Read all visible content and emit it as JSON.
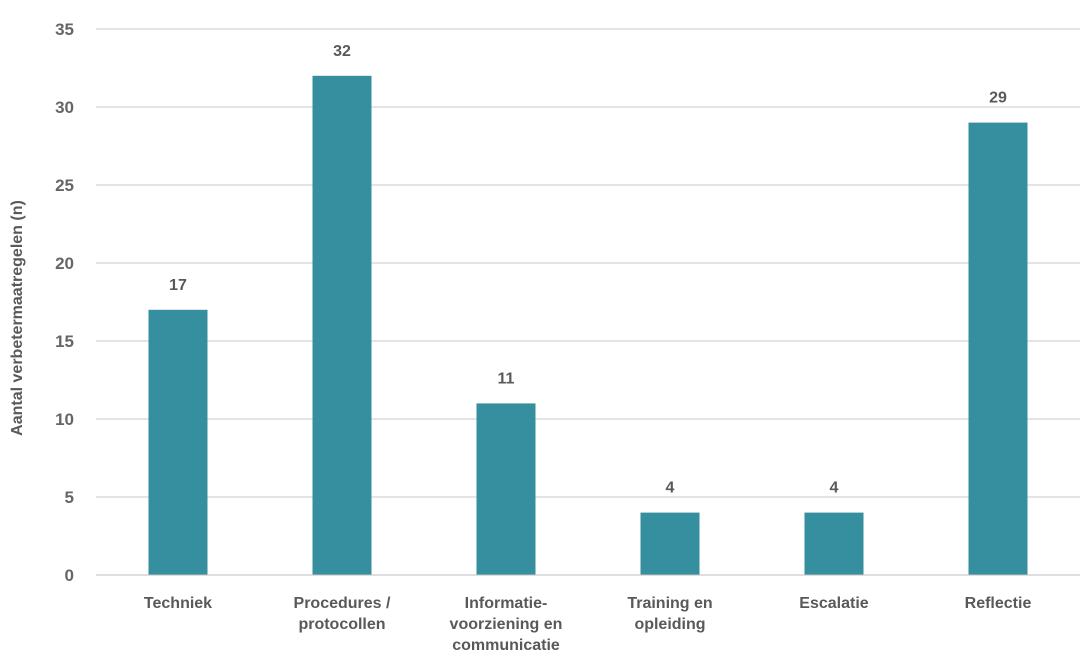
{
  "chart_data": {
    "type": "bar",
    "title": "",
    "xlabel": "",
    "ylabel": "Aantal verbetermaatregelen (n)",
    "categories": [
      [
        "Techniek"
      ],
      [
        "Procedures /",
        "protocollen"
      ],
      [
        "Informatie-",
        "voorziening en",
        "communicatie"
      ],
      [
        "Training en",
        "opleiding"
      ],
      [
        "Escalatie"
      ],
      [
        "Reflectie"
      ]
    ],
    "values": [
      17,
      32,
      11,
      4,
      4,
      29
    ],
    "data_labels": [
      "17",
      "32",
      "11",
      "4",
      "4",
      "29"
    ],
    "ylim": [
      0,
      35
    ],
    "yticks": [
      0,
      5,
      10,
      15,
      20,
      25,
      30,
      35
    ],
    "grid": true,
    "legend": "none",
    "bar_color": "#368f9e"
  }
}
